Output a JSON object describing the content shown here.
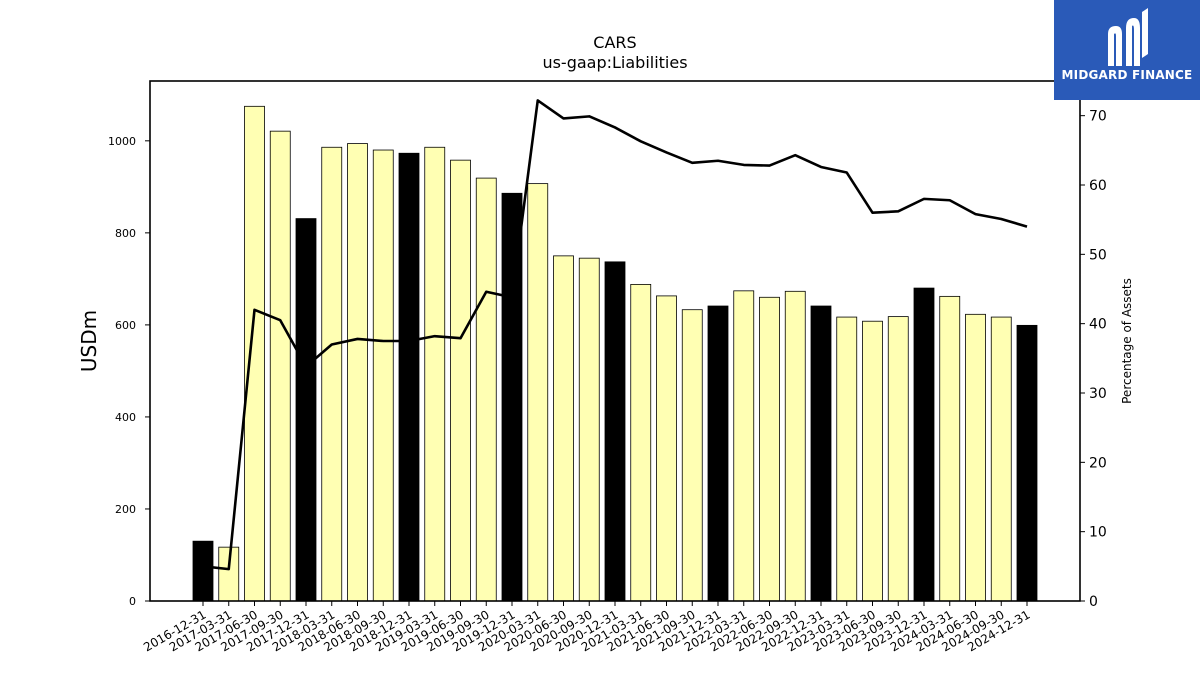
{
  "chart_data": {
    "type": "bar",
    "title": "CARS",
    "subtitle": "us-gaap:Liabilities",
    "ylabel": "USDm",
    "y2label": "Percentage of Assets",
    "ylim": [
      0,
      1130
    ],
    "y2lim": [
      0,
      75
    ],
    "yticks": [
      0,
      200,
      400,
      600,
      800,
      1000
    ],
    "y2ticks": [
      0,
      10,
      20,
      30,
      40,
      50,
      60,
      70
    ],
    "categories": [
      "2016-12-31",
      "2017-03-31",
      "2017-06-30",
      "2017-09-30",
      "2017-12-31",
      "2018-03-31",
      "2018-06-30",
      "2018-09-30",
      "2018-12-31",
      "2019-03-31",
      "2019-06-30",
      "2019-09-30",
      "2019-12-31",
      "2020-03-31",
      "2020-06-30",
      "2020-09-30",
      "2020-12-31",
      "2021-03-31",
      "2021-06-30",
      "2021-09-30",
      "2021-12-31",
      "2022-03-31",
      "2022-06-30",
      "2022-09-30",
      "2022-12-31",
      "2023-03-31",
      "2023-06-30",
      "2023-09-30",
      "2023-12-31",
      "2024-03-31",
      "2024-06-30",
      "2024-09-30",
      "2024-12-31"
    ],
    "series": [
      {
        "values": [
          130,
          117,
          1075,
          1021,
          831,
          986,
          994,
          980,
          973,
          986,
          958,
          919,
          886,
          907,
          750,
          745,
          737,
          688,
          663,
          633,
          641,
          674,
          660,
          673,
          641,
          617,
          608,
          618,
          680,
          662,
          623,
          617,
          599
        ],
        "year_end": [
          true,
          false,
          false,
          false,
          true,
          false,
          false,
          false,
          true,
          false,
          false,
          false,
          true,
          false,
          false,
          false,
          true,
          false,
          false,
          false,
          true,
          false,
          false,
          false,
          true,
          false,
          false,
          false,
          true,
          false,
          false,
          false,
          true
        ]
      },
      {
        "values": [
          5.0,
          4.6,
          42.0,
          40.5,
          33.8,
          37.0,
          37.8,
          37.5,
          37.5,
          38.2,
          37.9,
          44.6,
          43.8,
          72.2,
          69.6,
          69.9,
          68.3,
          66.3,
          64.7,
          63.2,
          63.5,
          62.9,
          62.8,
          64.3,
          62.6,
          61.8,
          56.0,
          56.2,
          58.0,
          57.8,
          55.8,
          55.1,
          54.0
        ]
      }
    ],
    "colors": {
      "bar_quarter": "#ffffb3",
      "bar_year_end": "#000000",
      "line": "#000000"
    },
    "grid": false,
    "legend": "none"
  },
  "logo": {
    "text": "MIDGARD FINANCE",
    "background": "#2a5ab8"
  }
}
